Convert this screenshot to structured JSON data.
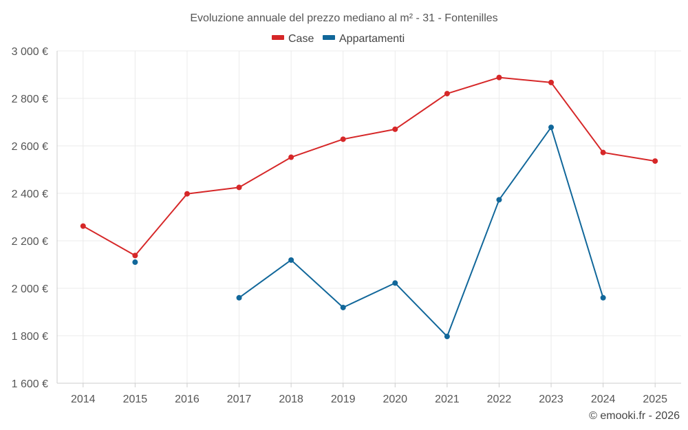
{
  "chart_data": {
    "type": "line",
    "title": "Evoluzione annuale del prezzo mediano al m² - 31 - Fontenilles",
    "categories": [
      "2014",
      "2015",
      "2016",
      "2017",
      "2018",
      "2019",
      "2020",
      "2021",
      "2022",
      "2023",
      "2024",
      "2025"
    ],
    "y_ticks": [
      1600,
      1800,
      2000,
      2200,
      2400,
      2600,
      2800,
      3000
    ],
    "y_tick_labels": [
      "1 600 €",
      "1 800 €",
      "2 000 €",
      "2 200 €",
      "2 400 €",
      "2 600 €",
      "2 800 €",
      "3 000 €"
    ],
    "ylim": [
      1600,
      3000
    ],
    "grid": true,
    "legend_position": "top-center",
    "series": [
      {
        "name": "Case",
        "color": "#d62728",
        "values": [
          2262,
          2138,
          2398,
          2425,
          2552,
          2628,
          2670,
          2820,
          2888,
          2867,
          2572,
          2536
        ]
      },
      {
        "name": "Appartamenti",
        "color": "#11679a",
        "values": [
          null,
          2110,
          null,
          1960,
          2119,
          1919,
          2022,
          1797,
          2373,
          2678,
          1960,
          null
        ]
      }
    ],
    "credit": "© emooki.fr - 2026"
  }
}
